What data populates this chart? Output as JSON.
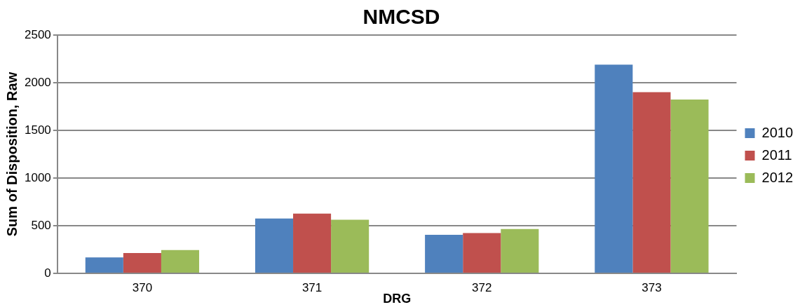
{
  "chart_data": {
    "type": "bar",
    "title": "NMCSD",
    "xlabel": "DRG",
    "ylabel": "Sum of Disposition, Raw",
    "categories": [
      "370",
      "371",
      "372",
      "373"
    ],
    "series": [
      {
        "name": "2010",
        "color": "#4f81bd",
        "values": [
          167,
          575,
          405,
          2190
        ]
      },
      {
        "name": "2011",
        "color": "#c0504d",
        "values": [
          214,
          626,
          422,
          1900
        ]
      },
      {
        "name": "2012",
        "color": "#9bbb59",
        "values": [
          245,
          563,
          465,
          1824
        ]
      }
    ],
    "ylim": [
      0,
      2500
    ],
    "yticks": [
      0,
      500,
      1000,
      1500,
      2000,
      2500
    ],
    "grid": "y",
    "legend": "right"
  }
}
